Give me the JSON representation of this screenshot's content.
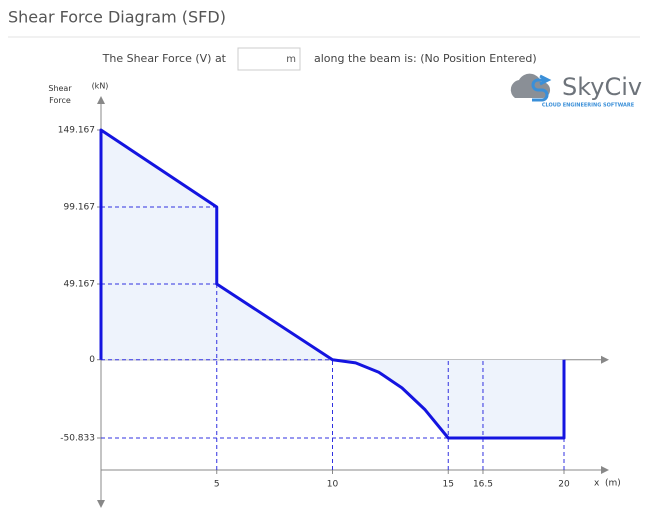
{
  "header": {
    "title": "Shear Force Diagram (SFD)"
  },
  "query": {
    "prefix": "The Shear Force (V) at",
    "unit": "m",
    "suffix": "along the beam is: (No Position Entered)"
  },
  "logo": {
    "name": "SkyCiv",
    "tagline": "CLOUD ENGINEERING SOFTWARE"
  },
  "chart_data": {
    "type": "line",
    "y_label": "Shear Force",
    "y_unit": "(kN)",
    "x_label": "x",
    "x_unit": "(m)",
    "xlim": [
      0,
      20
    ],
    "ylim": [
      -50.833,
      149.167
    ],
    "xticks": [
      5,
      10,
      15,
      16.5,
      20
    ],
    "yticks": [
      149.167,
      99.167,
      49.167,
      0,
      -50.833
    ],
    "series": [
      {
        "name": "Shear Force",
        "color": "#1414e0",
        "fill": "#eef3fc",
        "x": [
          0,
          0,
          5,
          5,
          10,
          11,
          12,
          13,
          14,
          15,
          20,
          20
        ],
        "values": [
          0,
          149.167,
          99.167,
          49.167,
          0,
          -2.03,
          -8.13,
          -18.3,
          -32.5,
          -50.833,
          -50.833,
          0
        ]
      }
    ]
  }
}
